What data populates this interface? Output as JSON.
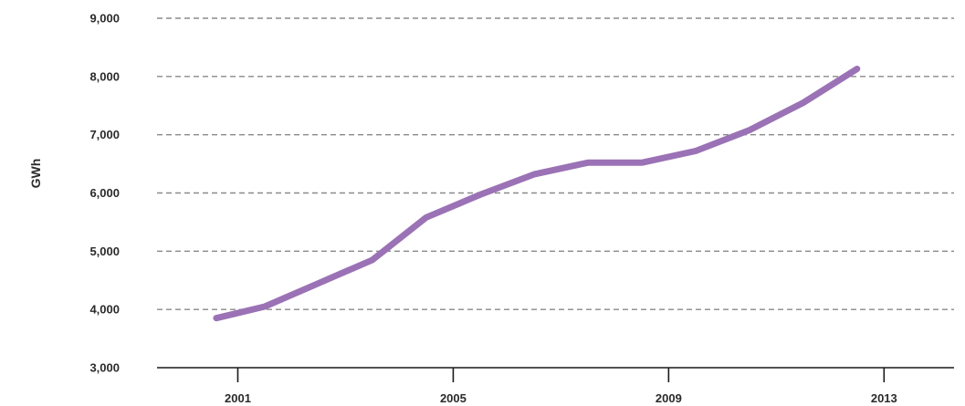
{
  "chart_data": {
    "type": "line",
    "title": "",
    "xlabel": "",
    "ylabel": "GWh",
    "x": [
      2000.6,
      2001.5,
      2002.5,
      2003.5,
      2004.5,
      2005.5,
      2006.5,
      2007.5,
      2008.5,
      2009.5,
      2010.5,
      2011.5,
      2012.5
    ],
    "series": [
      {
        "values": [
          3850,
          4050,
          4450,
          4850,
          5580,
          5970,
          6320,
          6520,
          6520,
          6720,
          7080,
          7550,
          8130
        ]
      }
    ],
    "xticks": [
      "2001",
      "2005",
      "2009",
      "2013"
    ],
    "yticks": [
      "3,000",
      "4,000",
      "5,000",
      "6,000",
      "7,000",
      "8,000",
      "9,000"
    ],
    "ylim": [
      3000,
      9000
    ],
    "xlim": [
      1999.5,
      2014.3
    ],
    "grid": true,
    "colors": {
      "line": "#9b72b5",
      "grid": "#8a8a8a",
      "axis": "#1a1a1a",
      "text": "#2b2b2b"
    }
  }
}
